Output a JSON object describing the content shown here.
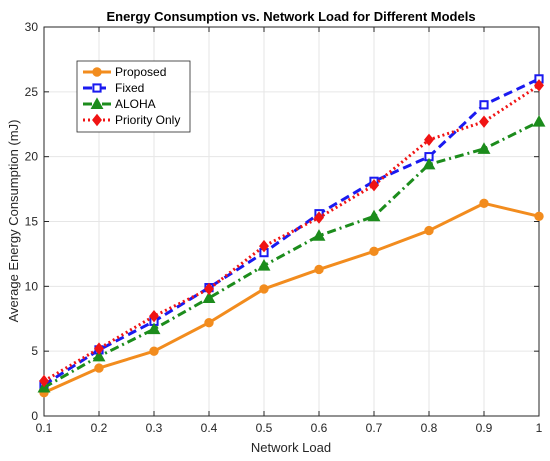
{
  "chart_data": {
    "type": "line",
    "title": "Energy Consumption vs. Network Load for Different Models",
    "xlabel": "Network Load",
    "ylabel": "Average Energy Consumption (mJ)",
    "xlim": [
      0.1,
      1
    ],
    "ylim": [
      0,
      30
    ],
    "xticks": [
      0.1,
      0.2,
      0.3,
      0.4,
      0.5,
      0.6,
      0.7,
      0.8,
      0.9,
      1
    ],
    "xtick_labels": [
      "0.1",
      "0.2",
      "0.3",
      "0.4",
      "0.5",
      "0.6",
      "0.7",
      "0.8",
      "0.9",
      "1"
    ],
    "yticks": [
      0,
      5,
      10,
      15,
      20,
      25,
      30
    ],
    "ytick_labels": [
      "0",
      "5",
      "10",
      "15",
      "20",
      "25",
      "30"
    ],
    "grid": true,
    "legend_position": "top-left",
    "x": [
      0.1,
      0.2,
      0.3,
      0.4,
      0.5,
      0.6,
      0.7,
      0.8,
      0.9,
      1.0
    ],
    "series": [
      {
        "name": "Proposed",
        "values": [
          1.8,
          3.7,
          5.0,
          7.2,
          9.8,
          11.3,
          12.7,
          14.3,
          16.4,
          15.4
        ],
        "color": "#F28C1E",
        "dash": "solid",
        "marker": "circle"
      },
      {
        "name": "Fixed",
        "values": [
          2.4,
          5.1,
          7.3,
          9.9,
          12.6,
          15.6,
          18.1,
          20.0,
          24.0,
          26.0
        ],
        "color": "#1A1AF0",
        "dash": "dash",
        "marker": "square"
      },
      {
        "name": "ALOHA",
        "values": [
          2.2,
          4.6,
          6.7,
          9.1,
          11.6,
          13.9,
          15.4,
          19.4,
          20.6,
          22.7
        ],
        "color": "#1C8C1C",
        "dash": "dashdot",
        "marker": "triangle"
      },
      {
        "name": "Priority Only",
        "values": [
          2.7,
          5.2,
          7.7,
          9.8,
          13.1,
          15.3,
          17.8,
          21.3,
          22.7,
          25.5
        ],
        "color": "#F01414",
        "dash": "dot",
        "marker": "diamond"
      }
    ]
  }
}
